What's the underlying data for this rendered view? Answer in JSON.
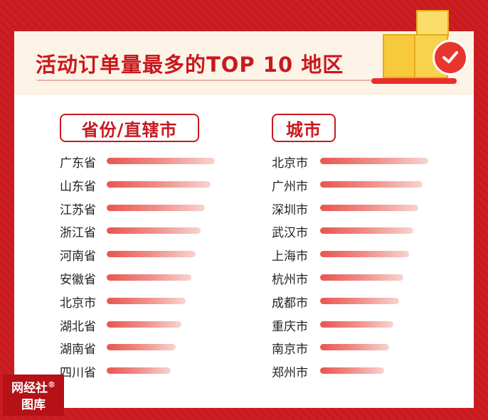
{
  "title": "活动订单量最多的TOP 10 地区",
  "watermark": {
    "line1": "网经社",
    "reg": "®",
    "line2": "图库"
  },
  "colors": {
    "accent": "#c8191f",
    "bar_start": "#e9554f",
    "bar_end": "#f8d3d0"
  },
  "icons": {
    "badge": "check-circle-icon",
    "boxes": "package-boxes-icon"
  },
  "chart_data": [
    {
      "type": "bar",
      "orientation": "horizontal",
      "title": "省份/直辖市",
      "categories": [
        "广东省",
        "山东省",
        "江苏省",
        "浙江省",
        "河南省",
        "安徽省",
        "北京市",
        "湖北省",
        "湖南省",
        "四川省"
      ],
      "values": [
        10,
        9.6,
        9.1,
        8.7,
        8.2,
        7.8,
        7.3,
        6.9,
        6.4,
        5.9
      ],
      "value_unit": "relative rank length"
    },
    {
      "type": "bar",
      "orientation": "horizontal",
      "title": "城市",
      "categories": [
        "北京市",
        "广州市",
        "深圳市",
        "武汉市",
        "上海市",
        "杭州市",
        "成都市",
        "重庆市",
        "南京市",
        "郑州市"
      ],
      "values": [
        10,
        9.5,
        9.1,
        8.6,
        8.2,
        7.7,
        7.3,
        6.8,
        6.4,
        5.9
      ],
      "value_unit": "relative rank length"
    }
  ]
}
